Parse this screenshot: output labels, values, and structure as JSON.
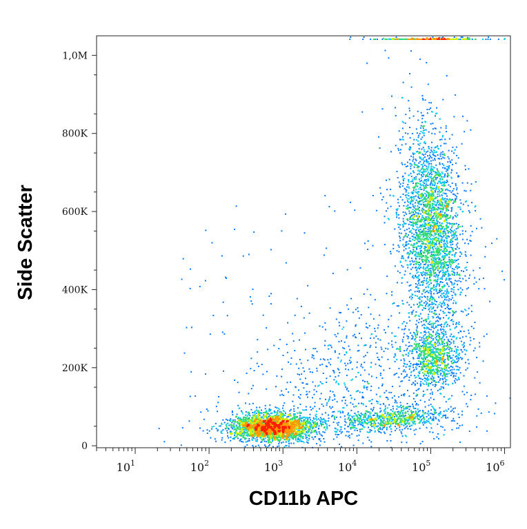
{
  "chart_data": {
    "type": "scatter",
    "title": "",
    "xlabel": "CD11b APC",
    "ylabel": "Side Scatter",
    "x_scale": "log",
    "xlim": [
      3.0,
      1200000
    ],
    "ylim": [
      -5000,
      1050000
    ],
    "x_ticks": [
      {
        "value": 10,
        "base": "10",
        "exp": "1"
      },
      {
        "value": 100,
        "base": "10",
        "exp": "2"
      },
      {
        "value": 1000,
        "base": "10",
        "exp": "3"
      },
      {
        "value": 10000,
        "base": "10",
        "exp": "4"
      },
      {
        "value": 100000,
        "base": "10",
        "exp": "5"
      },
      {
        "value": 1000000,
        "base": "10",
        "exp": "6"
      }
    ],
    "y_ticks": [
      {
        "value": 0,
        "label": "0"
      },
      {
        "value": 200000,
        "label": "200K"
      },
      {
        "value": 400000,
        "label": "400K"
      },
      {
        "value": 600000,
        "label": "600K"
      },
      {
        "value": 800000,
        "label": "800K"
      },
      {
        "value": 1000000,
        "label": "1,0M"
      }
    ],
    "grid": false,
    "legend": "none",
    "colormap": [
      "#0000cc",
      "#0077ff",
      "#00ccee",
      "#33dd66",
      "#ccee00",
      "#ff9900",
      "#ff2200"
    ],
    "series": [
      {
        "population": 1,
        "x_center": 700,
        "y_center": 50000,
        "n": 2600,
        "density": "high"
      },
      {
        "population": 2,
        "x_center": 100000,
        "y_center": 560000,
        "n": 2800,
        "density": "medium-high"
      },
      {
        "population": 3,
        "x_center": 110000,
        "y_center": 230000,
        "n": 900,
        "density": "medium"
      },
      {
        "population": 4,
        "x_center": 30000,
        "y_center": 70000,
        "n": 700,
        "density": "medium"
      },
      {
        "population": 5,
        "x_center": 10000,
        "y_center": 150000,
        "n": 800,
        "density": "low"
      },
      {
        "population": 6,
        "x_center": 100000,
        "y_center": 1040000,
        "n": 300,
        "density": "saturated-top-edge"
      }
    ]
  }
}
